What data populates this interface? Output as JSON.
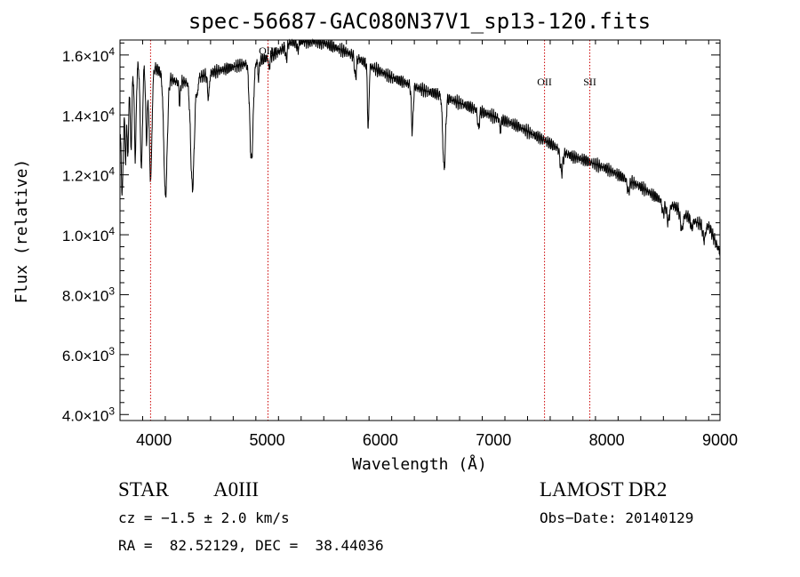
{
  "chart_data": {
    "type": "line",
    "title": "spec-56687-GAC080N37V1_sp13-120.fits",
    "xlabel": "Wavelength (Å)",
    "ylabel": "Flux (relative)",
    "xlim": [
      3700,
      9000
    ],
    "ylim": [
      3800,
      16500
    ],
    "x_ticks": [
      4000,
      5000,
      6000,
      7000,
      8000,
      9000
    ],
    "x_tick_labels": [
      "4000",
      "5000",
      "6000",
      "7000",
      "8000",
      "9000"
    ],
    "y_ticks": [
      {
        "value": 4000,
        "mantissa": "4.0",
        "exp": "3"
      },
      {
        "value": 6000,
        "mantissa": "6.0",
        "exp": "3"
      },
      {
        "value": 8000,
        "mantissa": "8.0",
        "exp": "3"
      },
      {
        "value": 10000,
        "mantissa": "1.0",
        "exp": "4"
      },
      {
        "value": 12000,
        "mantissa": "1.2",
        "exp": "4"
      },
      {
        "value": 14000,
        "mantissa": "1.4",
        "exp": "4"
      },
      {
        "value": 16000,
        "mantissa": "1.6",
        "exp": "4"
      }
    ],
    "line_color": "#000000",
    "marker_color": "#cc0000",
    "line_markers": [
      {
        "x": 3970,
        "label": ""
      },
      {
        "x": 5007,
        "label": "OIII"
      },
      {
        "x": 7450,
        "label": "OII"
      },
      {
        "x": 7850,
        "label": "SII"
      }
    ],
    "series": [
      {
        "continuum": [
          [
            3700,
            13500
          ],
          [
            3800,
            15500
          ],
          [
            3900,
            15800
          ],
          [
            4000,
            15600
          ],
          [
            4100,
            15300
          ],
          [
            4200,
            15100
          ],
          [
            4300,
            15100
          ],
          [
            4400,
            15250
          ],
          [
            4500,
            15400
          ],
          [
            4600,
            15500
          ],
          [
            4700,
            15600
          ],
          [
            4800,
            15700
          ],
          [
            4900,
            15800
          ],
          [
            5000,
            15900
          ],
          [
            5100,
            16100
          ],
          [
            5200,
            16400
          ],
          [
            5300,
            16450
          ],
          [
            5400,
            16450
          ],
          [
            5500,
            16400
          ],
          [
            5600,
            16250
          ],
          [
            5700,
            16100
          ],
          [
            5800,
            15900
          ],
          [
            5900,
            15650
          ],
          [
            6000,
            15450
          ],
          [
            6100,
            15250
          ],
          [
            6200,
            15100
          ],
          [
            6300,
            14950
          ],
          [
            6400,
            14800
          ],
          [
            6500,
            14700
          ],
          [
            6600,
            14550
          ],
          [
            6700,
            14400
          ],
          [
            6800,
            14250
          ],
          [
            6900,
            14100
          ],
          [
            7000,
            13950
          ],
          [
            7100,
            13800
          ],
          [
            7200,
            13650
          ],
          [
            7300,
            13450
          ],
          [
            7400,
            13250
          ],
          [
            7500,
            13050
          ],
          [
            7600,
            12800
          ],
          [
            7700,
            12600
          ],
          [
            7800,
            12500
          ],
          [
            7900,
            12350
          ],
          [
            8000,
            12200
          ],
          [
            8100,
            12000
          ],
          [
            8200,
            11800
          ],
          [
            8300,
            11600
          ],
          [
            8400,
            11350
          ],
          [
            8500,
            11100
          ],
          [
            8600,
            10950
          ],
          [
            8700,
            10650
          ],
          [
            8800,
            10400
          ],
          [
            8900,
            10300
          ],
          [
            9000,
            9400
          ]
        ],
        "absorption_lines": [
          [
            3720,
            2500,
            8
          ],
          [
            3750,
            2000,
            6
          ],
          [
            3770,
            2300,
            6
          ],
          [
            3798,
            2600,
            7
          ],
          [
            3835,
            3000,
            8
          ],
          [
            3889,
            3500,
            10
          ],
          [
            3934,
            2500,
            8
          ],
          [
            3970,
            3800,
            12
          ],
          [
            4102,
            4000,
            15
          ],
          [
            4227,
            700,
            6
          ],
          [
            4340,
            3600,
            16
          ],
          [
            4384,
            500,
            6
          ],
          [
            4481,
            800,
            8
          ],
          [
            4861,
            3300,
            15
          ],
          [
            4924,
            600,
            6
          ],
          [
            5018,
            400,
            6
          ],
          [
            5169,
            500,
            6
          ],
          [
            5270,
            300,
            6
          ],
          [
            5780,
            700,
            8
          ],
          [
            5890,
            1300,
            6
          ],
          [
            5896,
            1100,
            6
          ],
          [
            6282,
            1500,
            8
          ],
          [
            6563,
            2400,
            12
          ],
          [
            6867,
            600,
            8
          ],
          [
            7060,
            400,
            6
          ],
          [
            7600,
            700,
            12
          ],
          [
            8190,
            400,
            10
          ],
          [
            8498,
            400,
            10
          ],
          [
            8542,
            600,
            12
          ],
          [
            8662,
            600,
            12
          ],
          [
            8750,
            300,
            10
          ],
          [
            8860,
            500,
            12
          ]
        ]
      }
    ]
  },
  "info": {
    "object_class": "STAR",
    "subclass": "A0III",
    "cz": "cz = −1.5 ± 2.0 km/s",
    "coords": "RA =  82.52129, DEC =  38.44036",
    "survey": "LAMOST DR2",
    "obs_date": "Obs−Date: 20140129"
  }
}
